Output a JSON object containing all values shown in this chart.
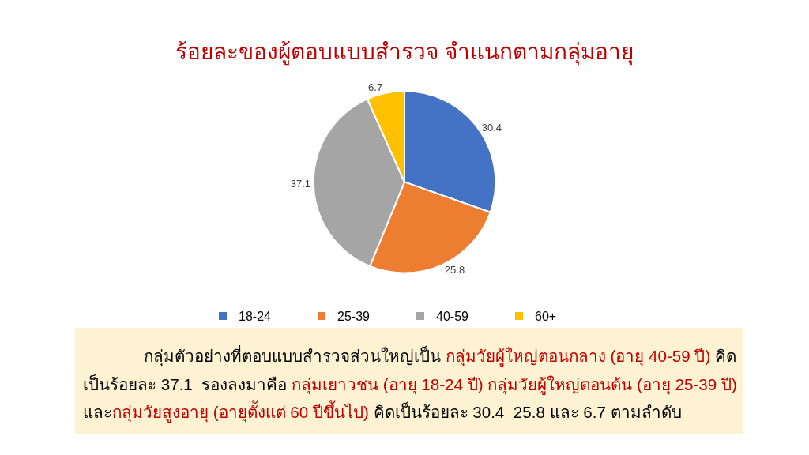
{
  "chart_data": {
    "type": "pie",
    "title": "ร้อยละของผู้ตอบแบบสำรวจ จำแนกตามกลุ่มอายุ",
    "categories": [
      "18-24",
      "25-39",
      "40-59",
      "60+"
    ],
    "values": [
      30.4,
      25.8,
      37.1,
      6.7
    ],
    "colors": [
      "#4472c4",
      "#ed7d31",
      "#a5a5a5",
      "#ffc000"
    ],
    "data_labels": true,
    "legend": "bottom",
    "annotations": [
      "กลุ่มตัวอย่างที่ตอบแบบสำรวจส่วนใหญ่เป็น ",
      "กลุ่มวัยผู้ใหญ่ตอนกลาง (อายุ 40-59 ปี)",
      " คิด",
      "เป็นร้อยละ 37.1  รองลงมาคือ ",
      "กลุ่มเยาวชน (อายุ 18-24 ปี) กลุ่มวัยผู้ใหญ่ตอนต้น (อายุ 25-39 ปี)",
      "และ",
      "กลุ่มวัยสูงอายุ (อายุตั้งแต่ 60 ปีขึ้นไป)",
      " คิดเป็นร้อยละ 30.4  25.8 และ 6.7 ตามลำดับ"
    ]
  }
}
